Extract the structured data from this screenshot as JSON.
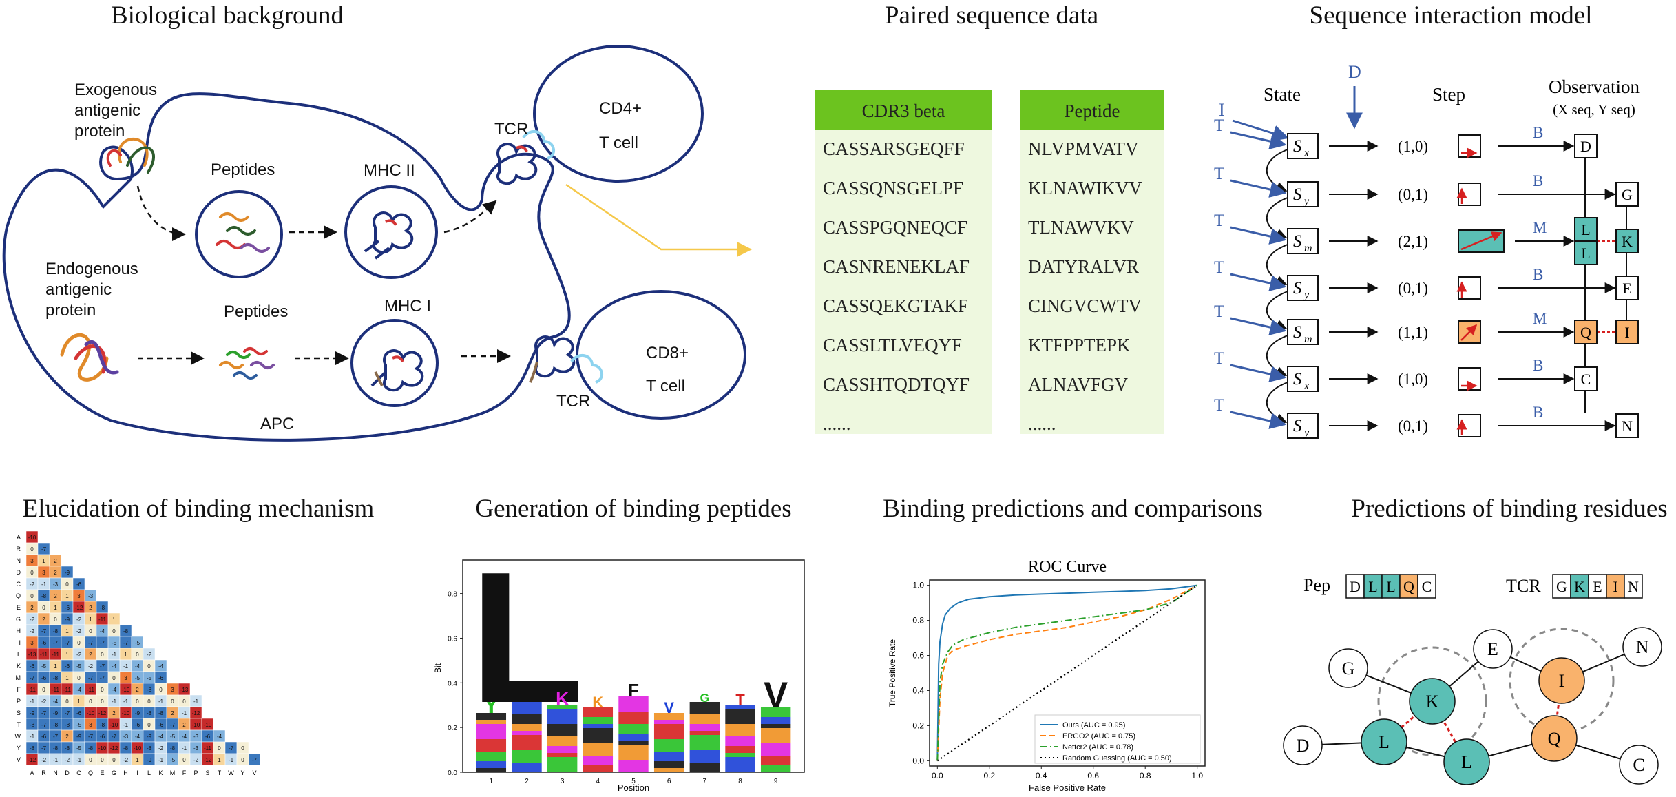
{
  "titles": {
    "bio": "Biological background",
    "paired": "Paired sequence data",
    "model": "Sequence interaction model",
    "mechanism": "Elucidation of binding mechanism",
    "generation": "Generation of binding peptides",
    "binding": "Binding predictions and comparisons",
    "residues": "Predictions of binding residues"
  },
  "bio": {
    "exogenous": [
      "Exogenous",
      "antigenic",
      "protein"
    ],
    "endogenous": [
      "Endogenous",
      "antigenic",
      "protein"
    ],
    "peptides1": "Peptides",
    "peptides2": "Peptides",
    "mhc2": "MHC II",
    "mhc1": "MHC I",
    "tcr1": "TCR",
    "tcr2": "TCR",
    "cd4": [
      "CD4+",
      "T cell"
    ],
    "cd8": [
      "CD8+",
      "T cell"
    ],
    "apc": "APC"
  },
  "paired": {
    "cdr3_header": "CDR3 beta",
    "peptide_header": "Peptide",
    "cdr3": [
      "CASSARSGEQFF",
      "CASSQNSGELPF",
      "CASSPGQNEQCF",
      "CASNRENEKLAF",
      "CASSQEKGTAKF",
      "CASSLTLVEQYF",
      "CASSHTQDTQYF",
      "......"
    ],
    "peptides": [
      "NLVPMVATV",
      "KLNAWIKVV",
      "TLNAWVKV",
      "DATYRALVR",
      "CINGVCWTV",
      "KTFPPTEPK",
      "ALNAVFGV",
      "......"
    ],
    "header_color": "#6cc31f",
    "body_color": "#eef8df"
  },
  "model": {
    "col_state": "State",
    "col_step": "Step",
    "col_obs": "Observation",
    "col_obs_sub": "(X seq, Y seq)",
    "init_label": "I",
    "delete_label": "D",
    "trans_label": "T",
    "rows": [
      {
        "state": "S",
        "sub": "x",
        "step": "(1,0)",
        "emit": "B",
        "x": "D",
        "y": ""
      },
      {
        "state": "S",
        "sub": "y",
        "step": "(0,1)",
        "emit": "B",
        "x": "",
        "y": "G"
      },
      {
        "state": "S",
        "sub": "m",
        "step": "(2,1)",
        "emit": "M",
        "x": "L L",
        "y": "K"
      },
      {
        "state": "S",
        "sub": "y",
        "step": "(0,1)",
        "emit": "B",
        "x": "",
        "y": "E"
      },
      {
        "state": "S",
        "sub": "m",
        "step": "(1,1)",
        "emit": "M",
        "x": "Q",
        "y": "I"
      },
      {
        "state": "S",
        "sub": "x",
        "step": "(1,0)",
        "emit": "B",
        "x": "C",
        "y": ""
      },
      {
        "state": "S",
        "sub": "y",
        "step": "(0,1)",
        "emit": "B",
        "x": "",
        "y": "N"
      }
    ]
  },
  "heatmap": {
    "labels": [
      "A",
      "R",
      "N",
      "D",
      "C",
      "Q",
      "E",
      "G",
      "H",
      "I",
      "L",
      "K",
      "M",
      "F",
      "P",
      "S",
      "T",
      "W",
      "Y",
      "V"
    ],
    "rows": [
      [
        -10
      ],
      [
        0,
        -7
      ],
      [
        3,
        1,
        2
      ],
      [
        0,
        3,
        2,
        -9
      ],
      [
        -2,
        -1,
        -3,
        0,
        -6
      ],
      [
        0,
        -8,
        2,
        1,
        3,
        -3
      ],
      [
        2,
        0,
        1,
        -6,
        -12,
        2,
        -8
      ],
      [
        -2,
        2,
        0,
        -9,
        -2,
        1,
        -11,
        1
      ],
      [
        -2,
        -7,
        -8,
        1,
        -2,
        0,
        -4,
        0,
        -8
      ],
      [
        3,
        -6,
        -7,
        -7,
        0,
        -7,
        -7,
        -5,
        -7,
        -5
      ],
      [
        -13,
        -11,
        -11,
        1,
        -2,
        2,
        0,
        -1,
        1,
        0,
        -2
      ],
      [
        -6,
        -5,
        1,
        -6,
        -5,
        -2,
        -7,
        -4,
        -1,
        -4,
        0,
        -4
      ],
      [
        -7,
        -6,
        -8,
        1,
        0,
        -7,
        -7,
        0,
        3,
        -5,
        -5,
        -6
      ],
      [
        -11,
        0,
        -11,
        -11,
        -4,
        -11,
        0,
        -4,
        -10,
        2,
        -8,
        0,
        3,
        -13
      ],
      [
        -1,
        -2,
        -4,
        0,
        1,
        0,
        0,
        -1,
        -1,
        0,
        0,
        -1,
        0,
        0,
        -1
      ],
      [
        -9,
        -7,
        -9,
        -7,
        -6,
        -10,
        -12,
        2,
        -10,
        -9,
        -8,
        -8,
        2,
        -1,
        -12
      ],
      [
        -8,
        -7,
        -8,
        -8,
        -5,
        3,
        -8,
        -10,
        -1,
        -6,
        0,
        -6,
        -7,
        2,
        -10,
        -10
      ],
      [
        -1,
        -6,
        -7,
        2,
        -9,
        -7,
        -6,
        -7,
        -3,
        -4,
        -9,
        -4,
        -5,
        -4,
        -3,
        -6,
        -4
      ],
      [
        -8,
        -7,
        -8,
        -8,
        -5,
        -8,
        -10,
        -12,
        -8,
        -10,
        -8,
        -2,
        -8,
        -1,
        -3,
        -11,
        0,
        -7,
        0
      ],
      [
        -12,
        -2,
        -1,
        -2,
        -1,
        0,
        0,
        0,
        -2,
        1,
        -9,
        -1,
        -5,
        0,
        -2,
        -12,
        1,
        -1,
        0,
        -7
      ]
    ]
  },
  "logo": {
    "ylabel": "Bit",
    "xlabel": "Position",
    "yticks": [
      "0.0",
      "0.2",
      "0.4",
      "0.6",
      "0.8"
    ],
    "xticks": [
      "1",
      "2",
      "3",
      "4",
      "5",
      "6",
      "7",
      "8",
      "9"
    ],
    "top_letters": [
      "Y",
      "L",
      "K",
      "K",
      "F",
      "V",
      "G",
      "T",
      "V"
    ],
    "top_heights": [
      0.08,
      0.62,
      0.06,
      0.05,
      0.06,
      0.05,
      0.04,
      0.05,
      0.12
    ]
  },
  "chart_data": {
    "type": "line",
    "title": "ROC Curve",
    "xlabel": "False Positive Rate",
    "ylabel": "True Positive Rate",
    "xlim": [
      0,
      1
    ],
    "ylim": [
      0,
      1
    ],
    "xticks": [
      "0.0",
      "0.2",
      "0.4",
      "0.6",
      "0.8",
      "1.0"
    ],
    "yticks": [
      "0.0",
      "0.2",
      "0.4",
      "0.6",
      "0.8",
      "1.0"
    ],
    "legend_position": "bottom-right",
    "series": [
      {
        "name": "Ours (AUC = 0.95)",
        "color": "#1f77b4",
        "style": "solid",
        "x": [
          0,
          0.005,
          0.01,
          0.02,
          0.03,
          0.05,
          0.08,
          0.12,
          0.2,
          0.3,
          0.4,
          0.5,
          0.6,
          0.7,
          0.8,
          0.9,
          1.0
        ],
        "y": [
          0,
          0.55,
          0.68,
          0.78,
          0.83,
          0.87,
          0.9,
          0.92,
          0.935,
          0.945,
          0.95,
          0.955,
          0.96,
          0.965,
          0.97,
          0.98,
          1.0
        ]
      },
      {
        "name": "ERGO2 (AUC = 0.75)",
        "color": "#ff7f0e",
        "style": "dashed",
        "x": [
          0,
          0.01,
          0.02,
          0.04,
          0.06,
          0.1,
          0.15,
          0.2,
          0.3,
          0.4,
          0.5,
          0.6,
          0.7,
          0.8,
          0.9,
          1.0
        ],
        "y": [
          0,
          0.35,
          0.5,
          0.6,
          0.63,
          0.65,
          0.67,
          0.69,
          0.72,
          0.74,
          0.76,
          0.79,
          0.82,
          0.86,
          0.92,
          1.0
        ]
      },
      {
        "name": "Nettcr2 (AUC = 0.78)",
        "color": "#2ca02c",
        "style": "dashdot",
        "x": [
          0,
          0.01,
          0.02,
          0.04,
          0.06,
          0.1,
          0.15,
          0.2,
          0.3,
          0.4,
          0.5,
          0.6,
          0.7,
          0.8,
          0.9,
          1.0
        ],
        "y": [
          0,
          0.45,
          0.55,
          0.62,
          0.66,
          0.69,
          0.71,
          0.73,
          0.76,
          0.78,
          0.8,
          0.82,
          0.84,
          0.86,
          0.9,
          1.0
        ]
      },
      {
        "name": "Random Guessing (AUC = 0.50)",
        "color": "#000000",
        "style": "dotted",
        "x": [
          0,
          1
        ],
        "y": [
          0,
          1
        ]
      }
    ]
  },
  "residues": {
    "pep_label": "Pep",
    "tcr_label": "TCR",
    "pep": [
      "D",
      "L",
      "L",
      "Q",
      "C"
    ],
    "tcr": [
      "G",
      "K",
      "E",
      "I",
      "N"
    ],
    "teal": "#5bbfb5",
    "orange": "#f9b26c",
    "nodes": [
      {
        "id": "G",
        "c": "white"
      },
      {
        "id": "K",
        "c": "teal"
      },
      {
        "id": "E",
        "c": "white"
      },
      {
        "id": "I",
        "c": "orange"
      },
      {
        "id": "N",
        "c": "white"
      },
      {
        "id": "D",
        "c": "white"
      },
      {
        "id": "L",
        "c": "teal"
      },
      {
        "id": "L",
        "c": "teal"
      },
      {
        "id": "Q",
        "c": "orange"
      },
      {
        "id": "C",
        "c": "white"
      }
    ]
  }
}
